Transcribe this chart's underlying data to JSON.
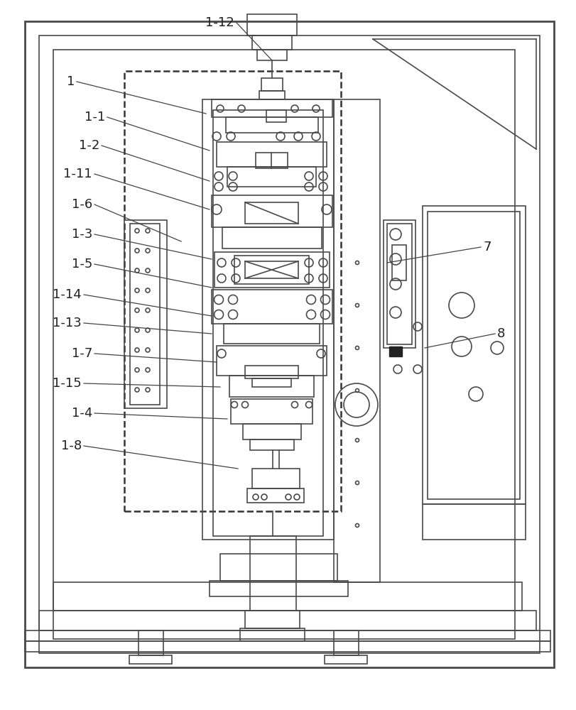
{
  "bg_color": "#ffffff",
  "lc": "#4a4a4a",
  "lw": 1.2,
  "tlw": 2.0,
  "label_fs": 13,
  "fig_w": 8.11,
  "fig_h": 10.0,
  "dpi": 100
}
